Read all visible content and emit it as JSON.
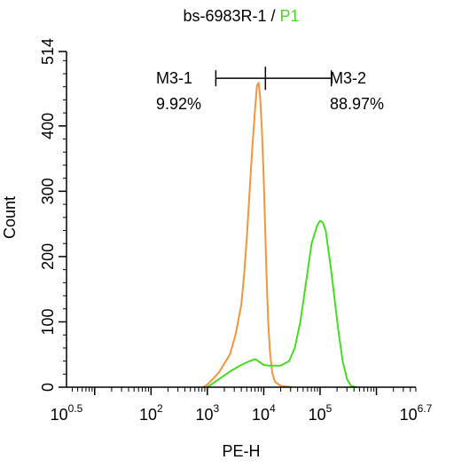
{
  "chart_data": {
    "type": "line",
    "title": "bs-6983R-1",
    "title_separator": " / ",
    "title_highlight": "P1",
    "title_highlight_color": "#4cd626",
    "xlabel": "PE-H",
    "ylabel": "Count",
    "x_scale": "log10",
    "xlim": [
      0.5,
      6.7
    ],
    "ylim": [
      0,
      514
    ],
    "x_ticks": [
      {
        "base": "10",
        "exp": "0.5",
        "value": 0.5
      },
      {
        "base": "10",
        "exp": "2",
        "value": 2
      },
      {
        "base": "10",
        "exp": "3",
        "value": 3
      },
      {
        "base": "10",
        "exp": "4",
        "value": 4
      },
      {
        "base": "10",
        "exp": "5",
        "value": 5
      },
      {
        "base": "10",
        "exp": "6.7",
        "value": 6.7
      }
    ],
    "y_ticks": [
      "0",
      "100",
      "200",
      "300",
      "400",
      "514"
    ],
    "y_tick_values": [
      0,
      100,
      200,
      300,
      400,
      514
    ],
    "series": [
      {
        "color": "#f0963c",
        "points": [
          [
            2.92,
            0
          ],
          [
            3.0,
            4
          ],
          [
            3.2,
            22
          ],
          [
            3.4,
            50
          ],
          [
            3.5,
            80
          ],
          [
            3.6,
            125
          ],
          [
            3.65,
            170
          ],
          [
            3.7,
            230
          ],
          [
            3.75,
            300
          ],
          [
            3.8,
            370
          ],
          [
            3.85,
            430
          ],
          [
            3.88,
            462
          ],
          [
            3.91,
            466
          ],
          [
            3.94,
            440
          ],
          [
            3.97,
            390
          ],
          [
            4.0,
            320
          ],
          [
            4.02,
            260
          ],
          [
            4.05,
            170
          ],
          [
            4.08,
            100
          ],
          [
            4.11,
            55
          ],
          [
            4.15,
            22
          ],
          [
            4.2,
            8
          ],
          [
            4.3,
            2
          ],
          [
            4.5,
            0
          ]
        ]
      },
      {
        "color": "#44dd22",
        "points": [
          [
            3.0,
            0
          ],
          [
            3.2,
            12
          ],
          [
            3.4,
            24
          ],
          [
            3.6,
            34
          ],
          [
            3.75,
            40
          ],
          [
            3.85,
            43
          ],
          [
            3.9,
            40
          ],
          [
            4.0,
            34
          ],
          [
            4.1,
            33
          ],
          [
            4.3,
            33
          ],
          [
            4.45,
            40
          ],
          [
            4.55,
            60
          ],
          [
            4.65,
            100
          ],
          [
            4.75,
            160
          ],
          [
            4.85,
            220
          ],
          [
            4.95,
            248
          ],
          [
            5.0,
            255
          ],
          [
            5.05,
            252
          ],
          [
            5.1,
            240
          ],
          [
            5.18,
            190
          ],
          [
            5.25,
            140
          ],
          [
            5.32,
            90
          ],
          [
            5.4,
            40
          ],
          [
            5.48,
            12
          ],
          [
            5.55,
            2
          ],
          [
            5.65,
            0
          ]
        ]
      }
    ],
    "gates": [
      {
        "label": "M3-1",
        "percent": "9.92%"
      },
      {
        "label": "M3-2",
        "percent": "88.97%"
      }
    ],
    "gate_range": [
      3.15,
      5.2
    ],
    "gate_divider": 4.03,
    "gate_y": 473
  }
}
